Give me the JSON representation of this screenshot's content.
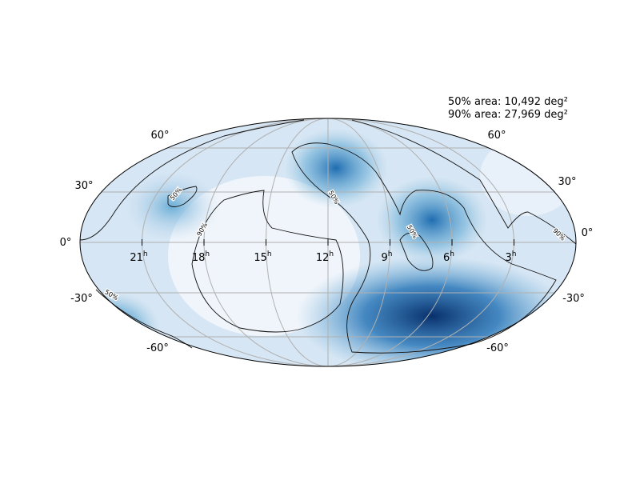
{
  "annotations": [
    "50% area: 10,492 deg²",
    "90% area: 27,969 deg²"
  ],
  "latitude_labels": {
    "left": [
      "60°",
      "30°",
      "0°",
      "-30°",
      "-60°"
    ],
    "right": [
      "60°",
      "30°",
      "0°",
      "-30°",
      "-60°"
    ]
  },
  "ra_labels": [
    {
      "hour": "21",
      "unit": "h"
    },
    {
      "hour": "18",
      "unit": "h"
    },
    {
      "hour": "15",
      "unit": "h"
    },
    {
      "hour": "12",
      "unit": "h"
    },
    {
      "hour": "9",
      "unit": "h"
    },
    {
      "hour": "6",
      "unit": "h"
    },
    {
      "hour": "3",
      "unit": "h"
    }
  ],
  "contour_labels": [
    "50%",
    "90%",
    "50%",
    "50%",
    "90%",
    "50%"
  ]
}
